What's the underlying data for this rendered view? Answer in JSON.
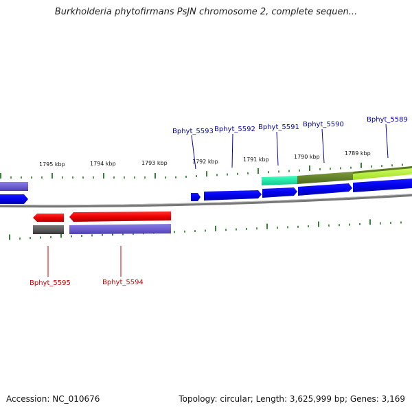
{
  "title": "Burkholderia phytofirmans PsJN chromosome 2, complete sequen...",
  "footer": {
    "accession": "Accession: NC_010676",
    "summary": "Topology: circular; Length: 3,625,999 bp; Genes: 3,169"
  },
  "scale": {
    "unit": "kbp",
    "labels": [
      "1795 kbp",
      "1794 kbp",
      "1793 kbp",
      "1792 kbp",
      "1791 kbp",
      "1790 kbp",
      "1789 kbp"
    ]
  },
  "colors": {
    "forward_gene": "#0000ee",
    "reverse_gene": "#ee0000",
    "forward_label": "#0000aa",
    "reverse_label": "#cc0000",
    "tick": "#006600",
    "backbone": "#888888"
  },
  "genes": {
    "forward": [
      "Bphyt_5593",
      "Bphyt_5592",
      "Bphyt_5591",
      "Bphyt_5590",
      "Bphyt_5589"
    ],
    "reverse": [
      "Bphyt_5595",
      "Bphyt_5594"
    ]
  }
}
